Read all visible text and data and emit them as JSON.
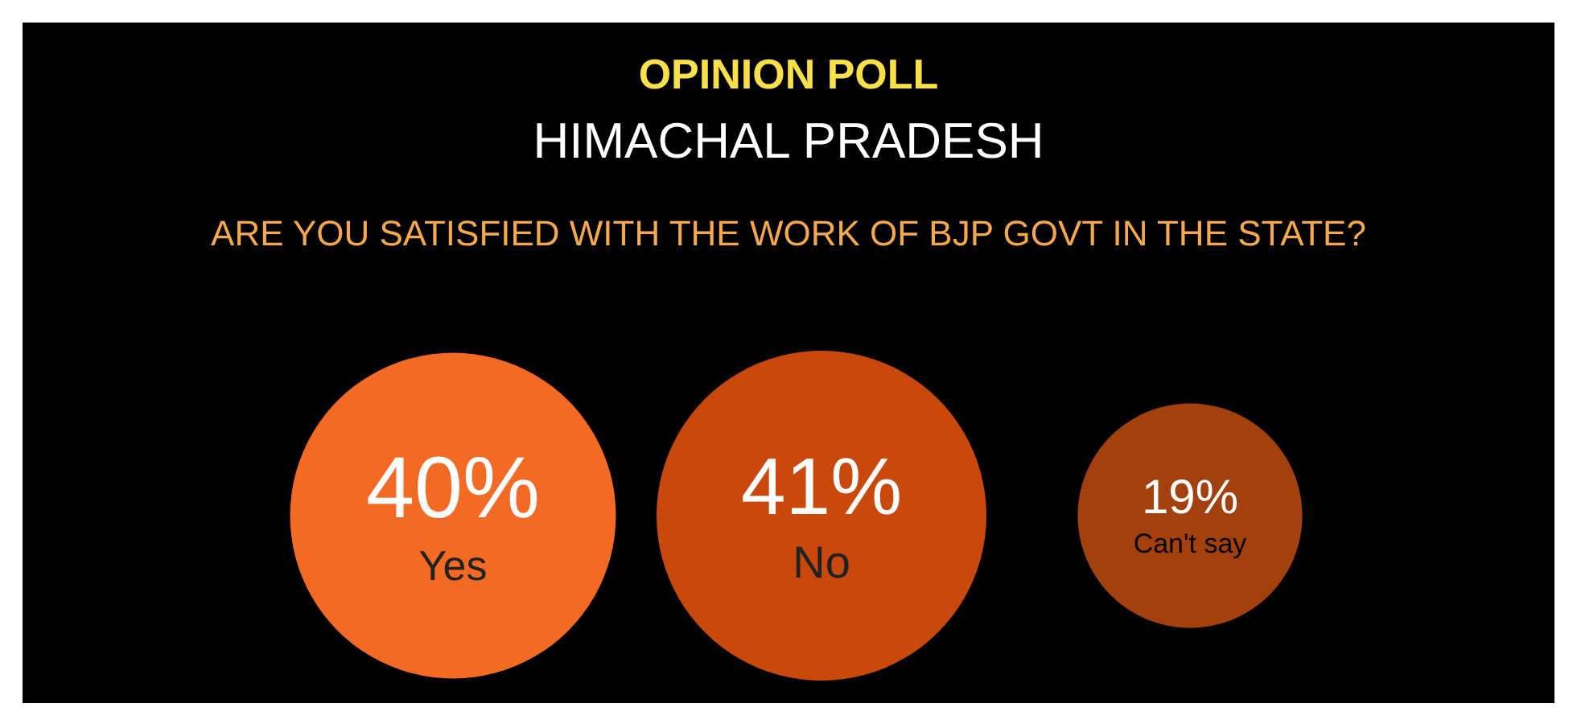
{
  "chart_data": {
    "type": "other",
    "title": "OPINION POLL",
    "subtitle": "HIMACHAL PRADESH",
    "annotations": [
      "ARE YOU SATISFIED WITH THE WORK OF BJP GOVT IN THE STATE?"
    ],
    "categories": [
      "Yes",
      "No",
      "Can't say"
    ],
    "values": [
      40,
      41,
      19
    ],
    "value_labels": [
      "40%",
      "41%",
      "19%"
    ],
    "colors": [
      "#f26a24",
      "#c9480c",
      "#a2400e"
    ]
  }
}
